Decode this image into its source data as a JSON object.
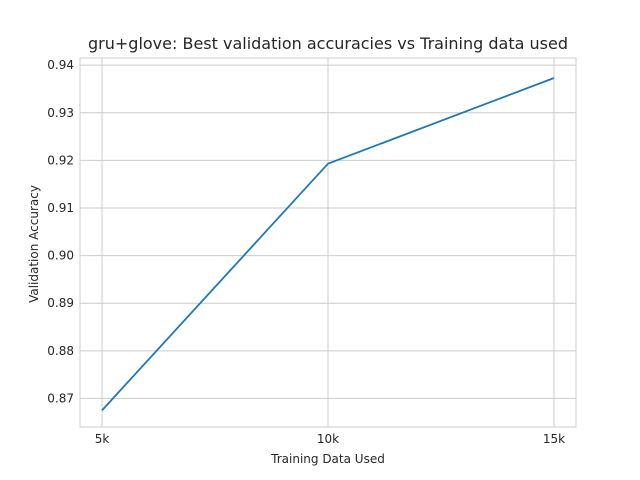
{
  "chart_data": {
    "type": "line",
    "title": "gru+glove: Best validation accuracies vs Training data used",
    "xlabel": "Training Data Used",
    "ylabel": "Validation Accuracy",
    "categories": [
      "5k",
      "10k",
      "15k"
    ],
    "series": [
      {
        "values": [
          0.8675,
          0.9193,
          0.9373
        ],
        "color": "#1f77b4"
      }
    ],
    "ylim": [
      0.864,
      0.9415
    ],
    "yticks": [
      0.87,
      0.88,
      0.89,
      0.9,
      0.91,
      0.92,
      0.93,
      0.94
    ],
    "ytick_labels": [
      "0.87",
      "0.88",
      "0.89",
      "0.90",
      "0.91",
      "0.92",
      "0.93",
      "0.94"
    ],
    "grid": true,
    "legend": "none"
  }
}
